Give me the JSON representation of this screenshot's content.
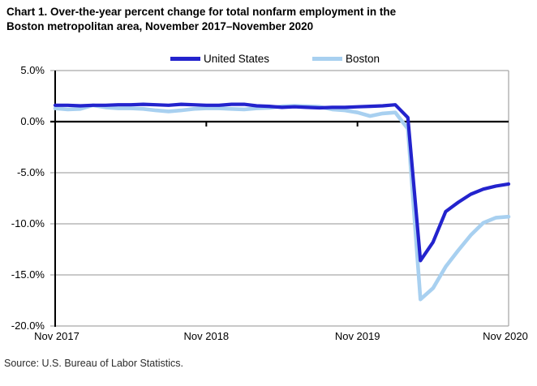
{
  "title": {
    "line1": "Chart 1. Over-the-year percent change for total nonfarm employment in the",
    "line2": "Boston metropolitan area, November 2017–November 2020"
  },
  "legend": {
    "items": [
      {
        "label": "United States",
        "color": "#2323CD"
      },
      {
        "label": "Boston",
        "color": "#A8D0F0"
      }
    ]
  },
  "source": "Source: U.S. Bureau of Labor Statistics.",
  "chart_data": {
    "type": "line",
    "title": "Chart 1. Over-the-year percent change for total nonfarm employment in the Boston metropolitan area, November 2017–November 2020",
    "unit": "percent change, over the year",
    "grid": "horizontal",
    "legend_position": "top",
    "ylim": [
      -20,
      5
    ],
    "y_tick_values": [
      5,
      0,
      -5,
      -10,
      -15,
      -20
    ],
    "y_tick_labels": [
      "5.0%",
      "0.0%",
      "-5.0%",
      "-10.0%",
      "-15.0%",
      "-20.0%"
    ],
    "x_tick_labels": [
      "Nov 2017",
      "Nov 2018",
      "Nov 2019",
      "Nov 2020"
    ],
    "x_tick_month_index": [
      0,
      12,
      24,
      36
    ],
    "x": [
      "Nov 2017",
      "Dec 2017",
      "Jan 2018",
      "Feb 2018",
      "Mar 2018",
      "Apr 2018",
      "May 2018",
      "Jun 2018",
      "Jul 2018",
      "Aug 2018",
      "Sep 2018",
      "Oct 2018",
      "Nov 2018",
      "Dec 2018",
      "Jan 2019",
      "Feb 2019",
      "Mar 2019",
      "Apr 2019",
      "May 2019",
      "Jun 2019",
      "Jul 2019",
      "Aug 2019",
      "Sep 2019",
      "Oct 2019",
      "Nov 2019",
      "Dec 2019",
      "Jan 2020",
      "Feb 2020",
      "Mar 2020",
      "Apr 2020",
      "May 2020",
      "Jun 2020",
      "Jul 2020",
      "Aug 2020",
      "Sep 2020",
      "Oct 2020",
      "Nov 2020"
    ],
    "series": [
      {
        "name": "United States",
        "color": "#2323CD",
        "values": [
          1.6,
          1.6,
          1.55,
          1.6,
          1.6,
          1.65,
          1.65,
          1.7,
          1.65,
          1.6,
          1.7,
          1.65,
          1.6,
          1.6,
          1.7,
          1.7,
          1.55,
          1.5,
          1.4,
          1.45,
          1.4,
          1.35,
          1.4,
          1.4,
          1.45,
          1.5,
          1.55,
          1.65,
          0.4,
          -13.6,
          -11.8,
          -8.8,
          -7.9,
          -7.1,
          -6.6,
          -6.3,
          -6.1
        ]
      },
      {
        "name": "Boston",
        "color": "#A8D0F0",
        "values": [
          1.3,
          1.2,
          1.25,
          1.6,
          1.4,
          1.3,
          1.3,
          1.25,
          1.1,
          1.0,
          1.1,
          1.25,
          1.3,
          1.3,
          1.25,
          1.2,
          1.3,
          1.35,
          1.5,
          1.55,
          1.5,
          1.45,
          1.2,
          1.1,
          0.9,
          0.55,
          0.8,
          0.9,
          -0.7,
          -17.4,
          -16.3,
          -14.2,
          -12.6,
          -11.1,
          -9.9,
          -9.4,
          -9.3
        ]
      }
    ]
  }
}
